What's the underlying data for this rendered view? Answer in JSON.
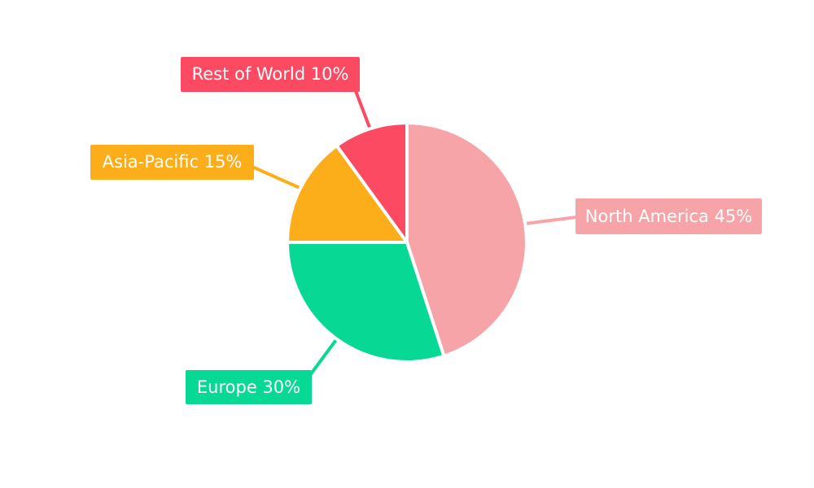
{
  "chart_data": {
    "type": "pie",
    "title": "",
    "categories": [
      "North America",
      "Europe",
      "Asia-Pacific",
      "Rest of World"
    ],
    "values": [
      45,
      30,
      15,
      10
    ],
    "unit": "%",
    "start_angle_deg": 0,
    "direction": "clockwise",
    "legend_position": "callout-labels",
    "grid": false,
    "background_color": "#ffffff",
    "slice_separator_color": "#ffffff",
    "label_text_color": "#ffffff",
    "series": [
      {
        "label": "North America",
        "value": 45,
        "display": "North America 45%",
        "color": "#f7a4a9"
      },
      {
        "label": "Europe",
        "value": 30,
        "display": "Europe 30%",
        "color": "#07d995"
      },
      {
        "label": "Asia-Pacific",
        "value": 15,
        "display": "Asia-Pacific 15%",
        "color": "#fbad1a"
      },
      {
        "label": "Rest of World",
        "value": 10,
        "display": "Rest of World 10%",
        "color": "#fb4a62"
      }
    ]
  }
}
